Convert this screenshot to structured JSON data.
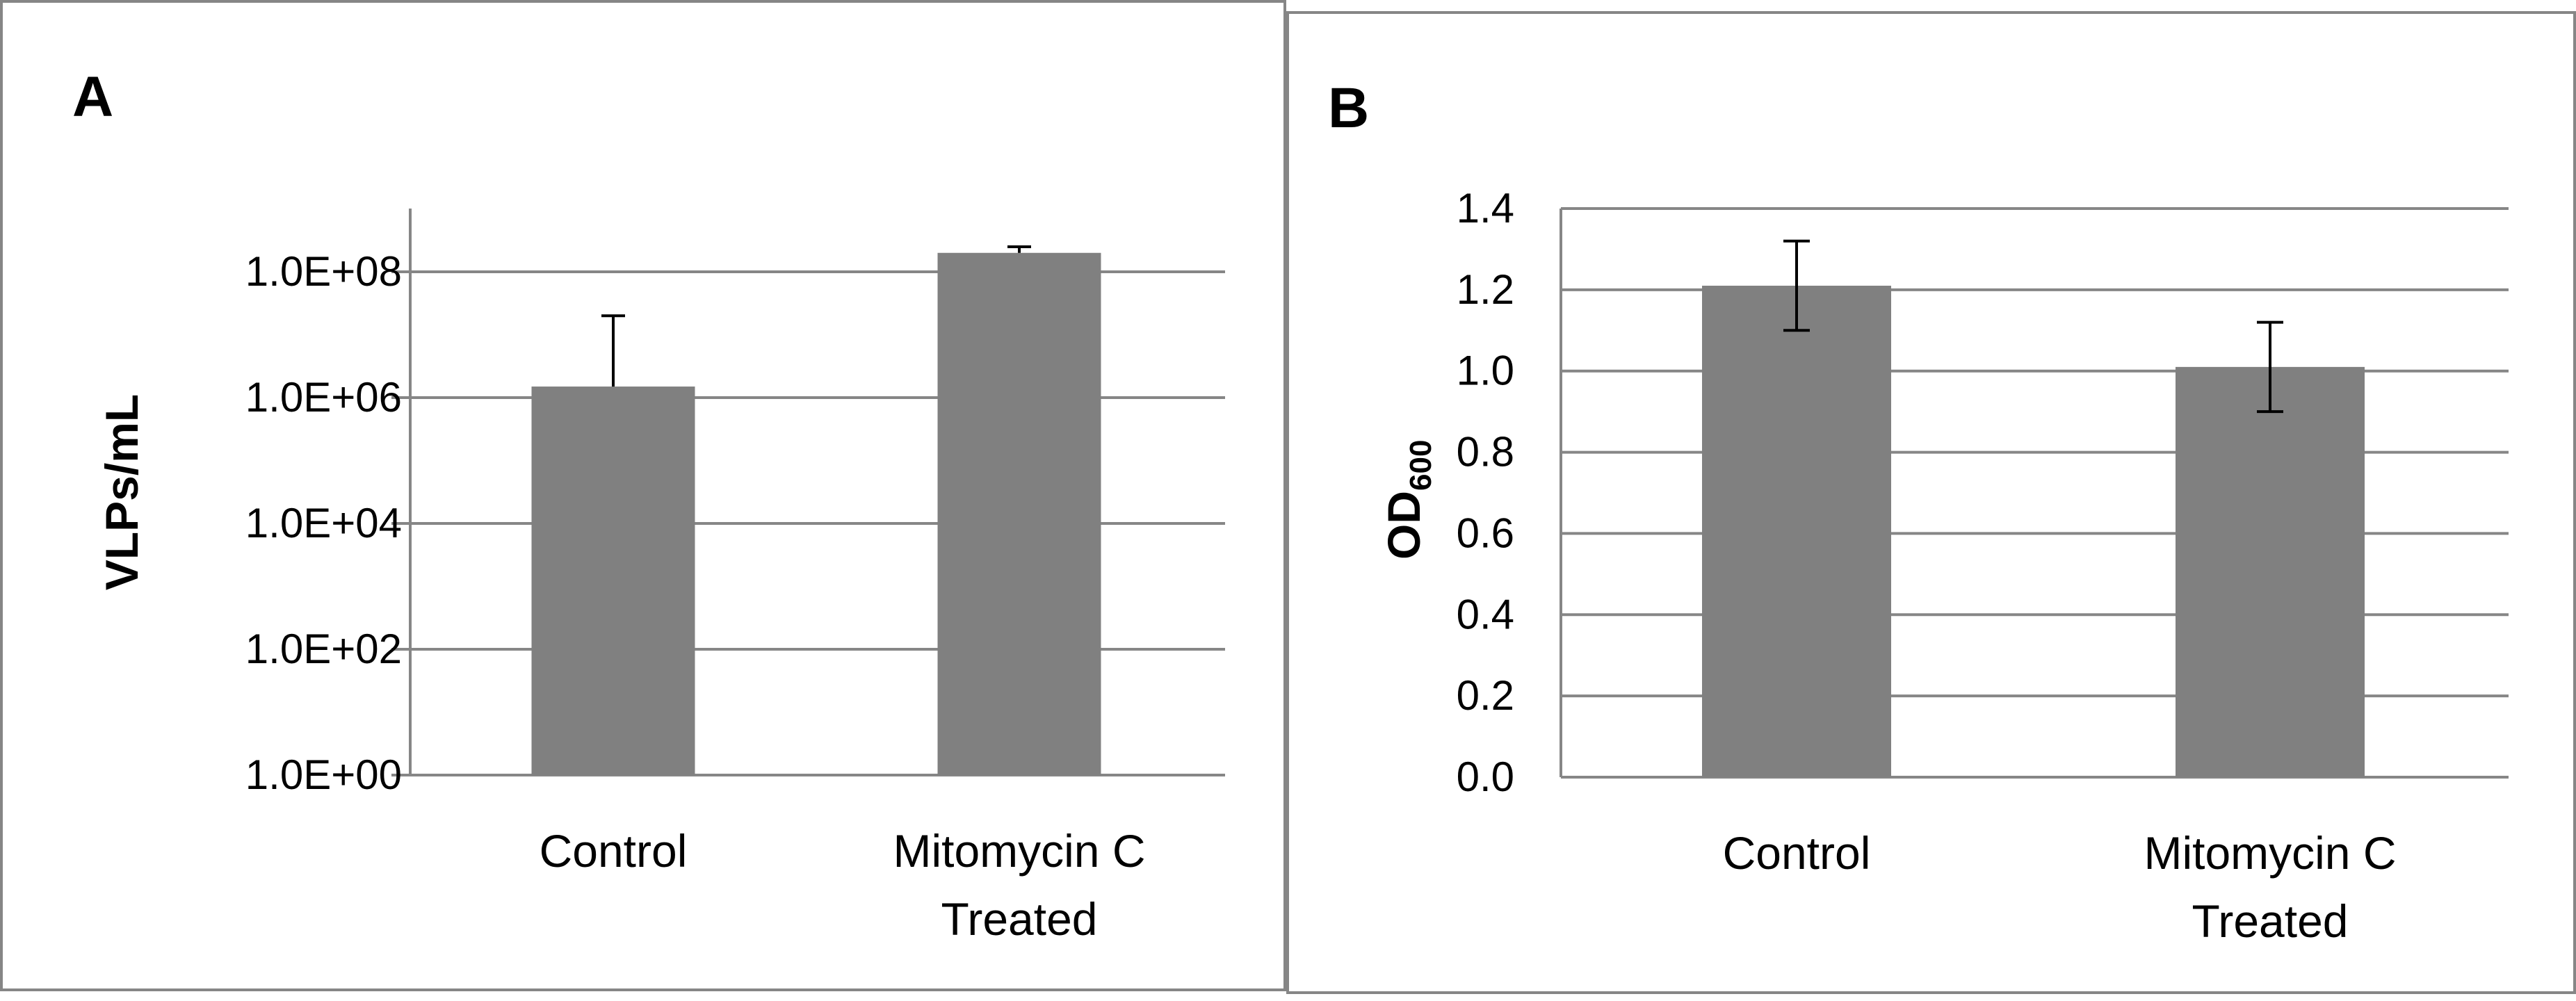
{
  "chart_data": [
    {
      "panel_label": "A",
      "type": "bar",
      "categories": [
        [
          "Control"
        ],
        [
          "Mitomycin C",
          "Treated"
        ]
      ],
      "values": [
        1500000,
        200000000
      ],
      "error_upper": [
        20000000,
        250000000
      ],
      "yscale": "log",
      "ylim": [
        1,
        1000000000
      ],
      "yticks": [
        1,
        100,
        10000,
        1000000,
        100000000
      ],
      "ytick_labels": [
        "1.0E+00",
        "1.0E+02",
        "1.0E+04",
        "1.0E+06",
        "1.0E+08"
      ],
      "ylabel": "VLPs/mL",
      "xlabel": "",
      "title": "",
      "grid": true,
      "color": "#808080"
    },
    {
      "panel_label": "B",
      "type": "bar",
      "categories": [
        [
          "Control"
        ],
        [
          "Mitomycin C",
          "Treated"
        ]
      ],
      "values": [
        1.21,
        1.01
      ],
      "error": [
        0.11,
        0.11
      ],
      "yscale": "linear",
      "ylim": [
        0,
        1.4
      ],
      "yticks": [
        0,
        0.2,
        0.4,
        0.6,
        0.8,
        1.0,
        1.2,
        1.4
      ],
      "ytick_labels": [
        "0.0",
        "0.2",
        "0.4",
        "0.6",
        "0.8",
        "1.0",
        "1.2",
        "1.4"
      ],
      "ylabel_main": "OD",
      "ylabel_sub": "600",
      "xlabel": "",
      "title": "",
      "grid": true,
      "color": "#808080"
    }
  ]
}
